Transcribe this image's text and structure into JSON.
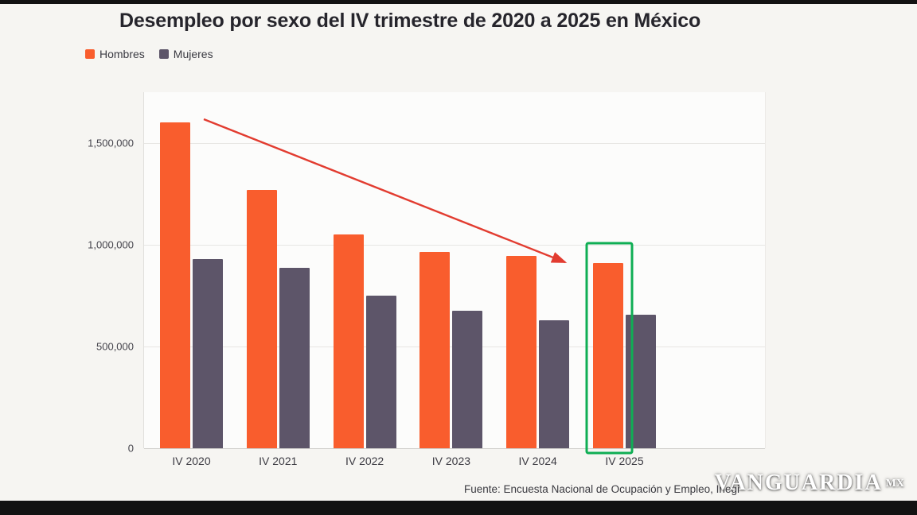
{
  "page": {
    "watermark": "VANGUARDIA",
    "watermark_suffix": "MX"
  },
  "chart_data": {
    "type": "bar",
    "title": "Desempleo por sexo del IV trimestre de 2020 a 2025 en México",
    "categories": [
      "IV 2020",
      "IV 2021",
      "IV 2022",
      "IV 2023",
      "IV 2024",
      "IV 2025"
    ],
    "series": [
      {
        "name": "Hombres",
        "color": "#f95d2d",
        "values": [
          1600000,
          1270000,
          1050000,
          965000,
          945000,
          910000
        ]
      },
      {
        "name": "Mujeres",
        "color": "#5d5569",
        "values": [
          930000,
          885000,
          750000,
          675000,
          630000,
          655000
        ]
      }
    ],
    "ylim": [
      0,
      1750000
    ],
    "yticks": [
      0,
      500000,
      1000000,
      1500000
    ],
    "ytick_labels": [
      "0",
      "500,000",
      "1,000,000",
      "1,500,000"
    ],
    "grid": true,
    "legend_position": "top-left",
    "source": "Fuente: Encuesta Nacional de Ocupación y Empleo, Inegi",
    "annotations": [
      {
        "type": "arrow",
        "color": "#e23c30",
        "description": "red trend arrow from top of IV 2020 Hombres bar down to IV 2025 Hombres bar"
      },
      {
        "type": "highlight-box",
        "color": "#0fae54",
        "category": "IV 2025",
        "series": "Hombres",
        "description": "green rectangle highlighting the IV 2025 Hombres bar"
      }
    ]
  }
}
